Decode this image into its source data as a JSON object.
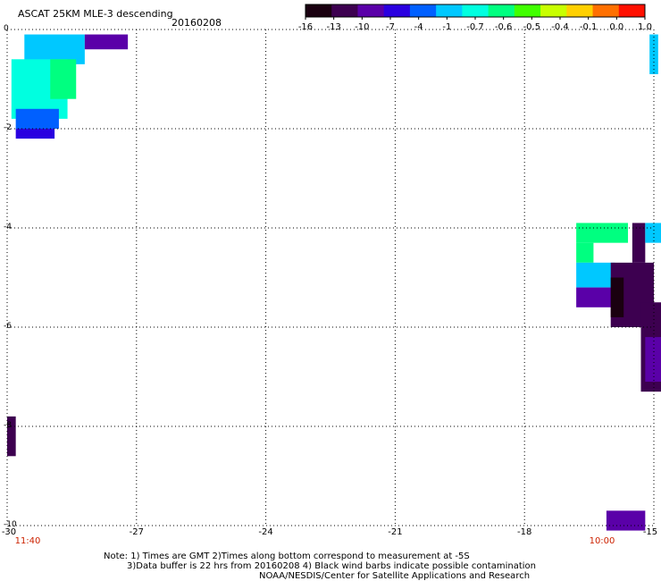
{
  "header": {
    "title": "ASCAT 25KM MLE-3 descending",
    "date": "20160208"
  },
  "colorbar": {
    "tick_labels": [
      "-16",
      "-13",
      "-10",
      "-7",
      "-4",
      "-1",
      "-0.7",
      "-0.6",
      "-0.5",
      "-0.4",
      "-0.1",
      "0.0",
      "1.0"
    ],
    "colors": [
      "#1a0010",
      "#3d0050",
      "#5a00a8",
      "#2a00e0",
      "#0060ff",
      "#00c8ff",
      "#00ffe0",
      "#00ff80",
      "#40ff00",
      "#c8ff00",
      "#ffd000",
      "#ff7000",
      "#ff1000"
    ]
  },
  "map": {
    "y_labels": [
      "0",
      "-2",
      "-4",
      "-6",
      "-8",
      "-10"
    ],
    "x_labels": [
      "-30",
      "-27",
      "-24",
      "-21",
      "-18",
      "-15"
    ],
    "x_range": [
      -30,
      -15
    ],
    "y_range": [
      0,
      -10
    ],
    "grid": "dotted",
    "time_labels": [
      {
        "lon": -30,
        "text": "11:40"
      },
      {
        "lon": -15,
        "text": "10:00"
      }
    ],
    "cells": [
      {
        "lon": -29.6,
        "lat": -0.1,
        "w": 1.4,
        "h": 0.6,
        "value": -1
      },
      {
        "lon": -28.2,
        "lat": -0.1,
        "w": 1.0,
        "h": 0.3,
        "value": -10
      },
      {
        "lon": -29.9,
        "lat": -0.6,
        "w": 1.3,
        "h": 1.2,
        "value": -0.7
      },
      {
        "lon": -29.0,
        "lat": -0.6,
        "w": 0.6,
        "h": 0.8,
        "value": -0.6
      },
      {
        "lon": -29.8,
        "lat": -1.6,
        "w": 1.0,
        "h": 0.4,
        "value": -4
      },
      {
        "lon": -29.8,
        "lat": -2.0,
        "w": 0.9,
        "h": 0.2,
        "value": -7
      },
      {
        "lon": -16.8,
        "lat": -3.9,
        "w": 1.2,
        "h": 0.4,
        "value": -0.6
      },
      {
        "lon": -16.8,
        "lat": -4.3,
        "w": 0.4,
        "h": 0.4,
        "value": -0.6
      },
      {
        "lon": -16.8,
        "lat": -4.7,
        "w": 0.9,
        "h": 0.5,
        "value": -1
      },
      {
        "lon": -16.8,
        "lat": -5.2,
        "w": 0.9,
        "h": 0.4,
        "value": -10
      },
      {
        "lon": -16.0,
        "lat": -4.7,
        "w": 1.0,
        "h": 1.3,
        "value": -13
      },
      {
        "lon": -16.0,
        "lat": -5.0,
        "w": 0.3,
        "h": 0.8,
        "value": -16
      },
      {
        "lon": -15.5,
        "lat": -3.9,
        "w": 0.3,
        "h": 0.8,
        "value": -13
      },
      {
        "lon": -15.2,
        "lat": -3.9,
        "w": 0.4,
        "h": 0.4,
        "value": -1
      },
      {
        "lon": -15.3,
        "lat": -5.5,
        "w": 0.5,
        "h": 1.8,
        "value": -13
      },
      {
        "lon": -15.2,
        "lat": -6.2,
        "w": 0.4,
        "h": 0.9,
        "value": -10
      },
      {
        "lon": -30.0,
        "lat": -7.8,
        "w": 0.2,
        "h": 0.8,
        "value": -13
      },
      {
        "lon": -15.1,
        "lat": -0.1,
        "w": 0.2,
        "h": 0.8,
        "value": -1
      },
      {
        "lon": -16.1,
        "lat": -9.7,
        "w": 0.9,
        "h": 0.4,
        "value": -10
      }
    ]
  },
  "notes": {
    "line1": "Note: 1) Times are GMT 2)Times along bottom correspond to measurement at -5S",
    "line2": "3)Data buffer is 22 hrs from 20160208 4) Black wind barbs indicate possible contamination",
    "line3": "NOAA/NESDIS/Center for Satellite Applications and Research"
  }
}
